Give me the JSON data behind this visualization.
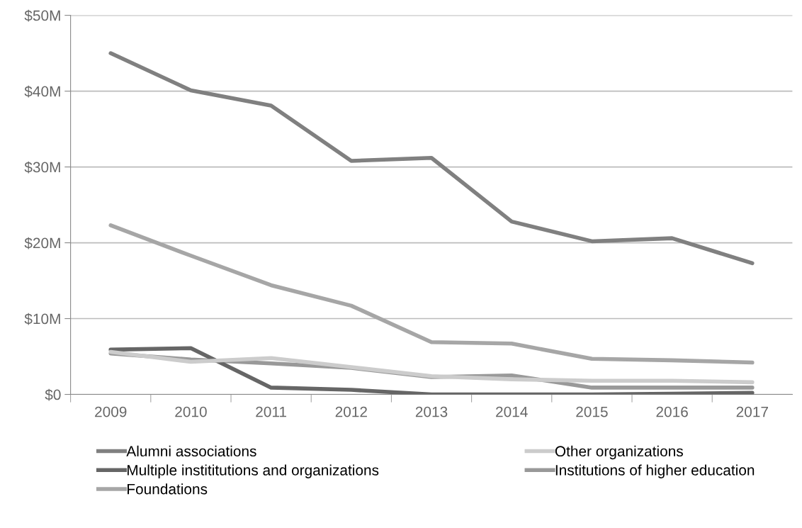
{
  "chart_data": {
    "type": "line",
    "categories": [
      "2009",
      "2010",
      "2011",
      "2012",
      "2013",
      "2014",
      "2015",
      "2016",
      "2017"
    ],
    "series": [
      {
        "name": "Alumni associations",
        "color": "#808080",
        "values": [
          45.0,
          40.1,
          38.1,
          30.8,
          31.2,
          22.8,
          20.2,
          20.6,
          17.3
        ]
      },
      {
        "name": "Foundations",
        "color": "#a6a6a6",
        "values": [
          22.3,
          18.3,
          14.4,
          11.7,
          6.9,
          6.7,
          4.7,
          4.5,
          4.2
        ]
      },
      {
        "name": "Institutions of higher education",
        "color": "#999999",
        "values": [
          5.4,
          4.6,
          4.1,
          3.5,
          2.3,
          2.5,
          0.9,
          0.9,
          0.9
        ]
      },
      {
        "name": "Multiple instititutions and organizations",
        "color": "#666666",
        "values": [
          5.9,
          6.1,
          0.9,
          0.6,
          0.0,
          0.0,
          0.0,
          0.1,
          0.2
        ]
      },
      {
        "name": "Other organizations",
        "color": "#cccccc",
        "values": [
          5.6,
          4.3,
          4.8,
          3.6,
          2.4,
          2.0,
          1.8,
          1.8,
          1.6
        ]
      }
    ],
    "ylim": [
      0,
      50
    ],
    "yticks": [
      {
        "value": 0,
        "label": "$0"
      },
      {
        "value": 10,
        "label": "$10M"
      },
      {
        "value": 20,
        "label": "$20M"
      },
      {
        "value": 30,
        "label": "$30M"
      },
      {
        "value": 40,
        "label": "$40M"
      },
      {
        "value": 50,
        "label": "$50M"
      }
    ],
    "grid": "y",
    "legend": "bottom",
    "marker": "none",
    "line_style": "solid"
  }
}
